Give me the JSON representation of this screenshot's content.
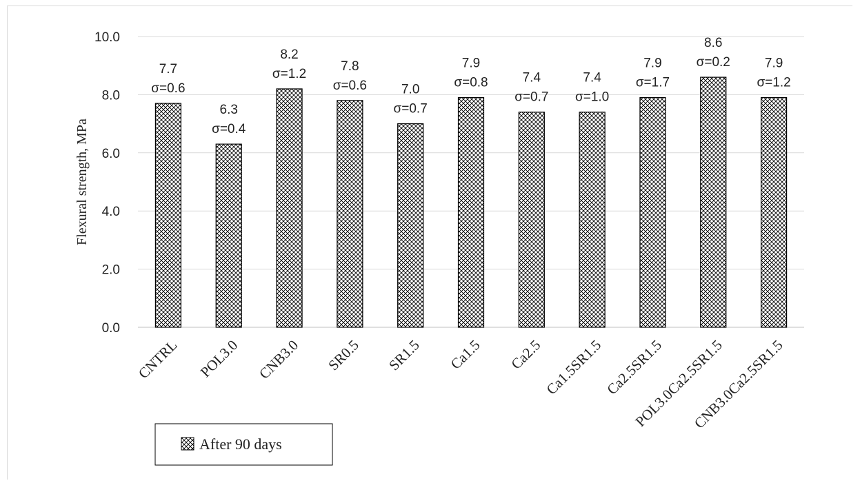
{
  "chart_data": {
    "type": "bar",
    "categories": [
      "CNTRL",
      "POL3.0",
      "CNB3.0",
      "SR0.5",
      "SR1.5",
      "Ca1.5",
      "Ca2.5",
      "Ca1.5SR1.5",
      "Ca2.5SR1.5",
      "POL3.0Ca2.5SR1.5",
      "CNB3.0Ca2.5SR1.5"
    ],
    "series": [
      {
        "name": "After 90 days",
        "values": [
          7.7,
          6.3,
          8.2,
          7.8,
          7.0,
          7.9,
          7.4,
          7.4,
          7.9,
          8.6,
          7.9
        ],
        "labels": [
          "7.7",
          "6.3",
          "8.2",
          "7.8",
          "7.0",
          "7.9",
          "7.4",
          "7.4",
          "7.9",
          "8.6",
          "7.9"
        ],
        "sigma": [
          "σ=0.6",
          "σ=0.4",
          "σ=1.2",
          "σ=0.6",
          "σ=0.7",
          "σ=0.8",
          "σ=0.7",
          "σ=1.0",
          "σ=1.7",
          "σ=0.2",
          "σ=1.2"
        ]
      }
    ],
    "title": "",
    "xlabel": "",
    "ylabel": "Flexural strength, MPa",
    "ylim": [
      0,
      10
    ],
    "yticks": [
      "0.0",
      "2.0",
      "4.0",
      "6.0",
      "8.0",
      "10.0"
    ],
    "grid": true,
    "legend_position": "bottom-left",
    "colors": {
      "bar_fill": "#ffffff",
      "hatch": "#000000",
      "grid": "#d9d9d9"
    }
  }
}
